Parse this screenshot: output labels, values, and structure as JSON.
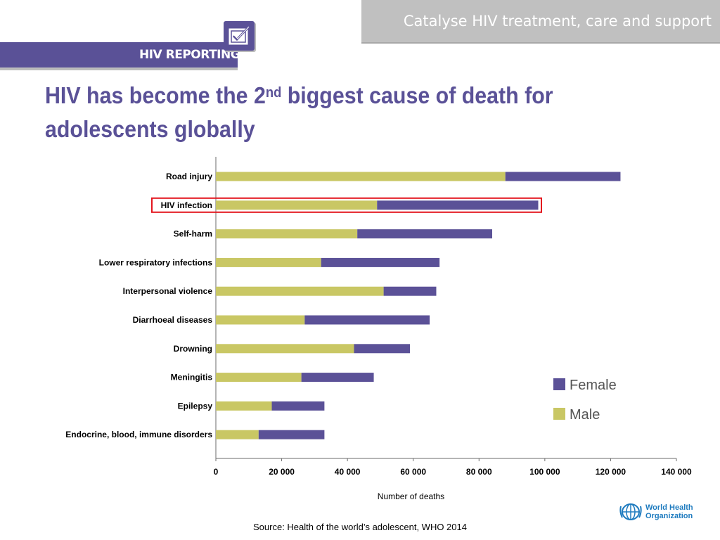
{
  "header": {
    "banner_text": "Catalyse HIV treatment, care and support",
    "logo_text": "HIV REPORTING"
  },
  "slide": {
    "title_part1": "HIV has become the 2",
    "title_sup": "nd",
    "title_part2": " biggest cause of death for adolescents globally",
    "source": "Source: Health of the world’s adolescent, WHO 2014"
  },
  "footer": {
    "org_line1": "World Health",
    "org_line2": "Organization"
  },
  "colors": {
    "male": "#c9c764",
    "female": "#5b5197",
    "highlight": "#e3161e",
    "axis": "#6b6b6b",
    "title": "#5a5197"
  },
  "chart_data": {
    "type": "bar",
    "orientation": "horizontal",
    "stacked": true,
    "categories": [
      "Road injury",
      "HIV infection",
      "Self-harm",
      "Lower respiratory infections",
      "Interpersonal violence",
      "Diarrhoeal diseases",
      "Drowning",
      "Meningitis",
      "Epilepsy",
      "Endocrine, blood, immune disorders"
    ],
    "series": [
      {
        "name": "Male",
        "values": [
          88000,
          49000,
          43000,
          32000,
          51000,
          27000,
          42000,
          26000,
          17000,
          13000
        ]
      },
      {
        "name": "Female",
        "values": [
          35000,
          49000,
          41000,
          36000,
          16000,
          38000,
          17000,
          22000,
          16000,
          20000
        ]
      }
    ],
    "highlighted_category": "HIV infection",
    "xlabel": "Number of deaths",
    "ylabel": "",
    "xlim": [
      0,
      140000
    ],
    "xticks": [
      0,
      20000,
      40000,
      60000,
      80000,
      100000,
      120000,
      140000
    ],
    "xtick_labels": [
      "0",
      "20 000",
      "40 000",
      "60 000",
      "80 000",
      "100 000",
      "120 000",
      "140 000"
    ],
    "legend": {
      "entries": [
        "Female",
        "Male"
      ],
      "position": "bottom-right"
    },
    "grid": false
  }
}
